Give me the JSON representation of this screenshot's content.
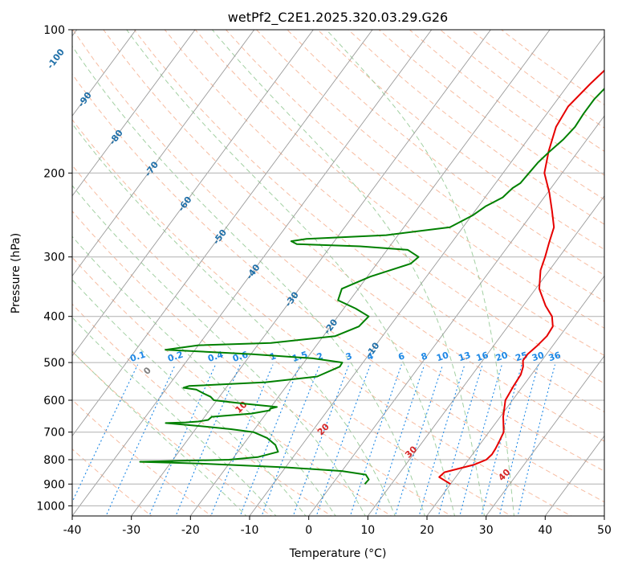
{
  "chart_data": {
    "type": "line",
    "subtype": "skew-t log-p diagram",
    "title": "wetPf2_C2E1.2025.320.03.29.G26",
    "xlabel": "Temperature (°C)",
    "ylabel": "Pressure (hPa)",
    "xlim": [
      -40,
      50
    ],
    "ylim": [
      1050,
      100
    ],
    "x_ticks": [
      -40,
      -30,
      -20,
      -10,
      0,
      10,
      20,
      30,
      40,
      50
    ],
    "y_ticks": [
      100,
      200,
      300,
      400,
      500,
      600,
      700,
      800,
      900,
      1000
    ],
    "grid": true,
    "colors": {
      "temperature": "#e60000",
      "dewpoint": "#008000",
      "isotherm": "#9a9a9a",
      "isobar": "#b0b0b0",
      "dry_adiabat": "#f4a582",
      "moist_adiabat": "#92c892",
      "mixing_ratio": "#1e88e5",
      "isotherm_label": "#1f6fa8",
      "dry_adiabat_label": "#d62728",
      "zero_label": "#808080",
      "mixing_label": "#1e88e5"
    },
    "series": [
      {
        "name": "Temperature",
        "pressure": [
          900,
          870,
          850,
          835,
          820,
          800,
          780,
          760,
          740,
          700,
          650,
          600,
          560,
          530,
          510,
          495,
          480,
          460,
          440,
          420,
          400,
          380,
          350,
          320,
          300,
          280,
          260,
          240,
          220,
          200,
          180,
          160,
          145,
          130,
          120,
          110,
          100
        ],
        "values": [
          20,
          17.2,
          17.5,
          19.5,
          21.5,
          23,
          23.3,
          23.2,
          23,
          22.5,
          20.5,
          18.8,
          18.4,
          18.2,
          17.6,
          16.8,
          16.8,
          17.4,
          17.8,
          17.6,
          16.2,
          13.8,
          10.6,
          8.5,
          7.6,
          6.5,
          5.4,
          3.0,
          0.3,
          -3.0,
          -5.0,
          -6.8,
          -7.3,
          -6.4,
          -5.5,
          -4.8,
          -3.7
        ]
      },
      {
        "name": "Dewpoint",
        "pressure": [
          900,
          880,
          860,
          845,
          830,
          815,
          808,
          805,
          800,
          790,
          770,
          745,
          720,
          700,
          690,
          680,
          670,
          668,
          665,
          660,
          650,
          640,
          630,
          625,
          620,
          610,
          600,
          590,
          580,
          570,
          565,
          560,
          550,
          535,
          510,
          500,
          490,
          480,
          470,
          460,
          455,
          440,
          420,
          400,
          385,
          370,
          350,
          330,
          310,
          300,
          290,
          285,
          282,
          278,
          275,
          270,
          260,
          245,
          235,
          225,
          215,
          210,
          200,
          190,
          180,
          170,
          160,
          150,
          140,
          130,
          120,
          110,
          100
        ],
        "values": [
          5.5,
          5.6,
          4.5,
          0,
          -10,
          -25,
          -35.3,
          -30,
          -20.5,
          -16,
          -13.2,
          -14.5,
          -16.8,
          -19.8,
          -24,
          -29.5,
          -35.8,
          -32.5,
          -30.5,
          -29,
          -28.8,
          -22.5,
          -19.8,
          -19.9,
          -19,
          -25,
          -30.5,
          -31.5,
          -33.2,
          -34.8,
          -37.2,
          -36.5,
          -24,
          -16,
          -13.4,
          -13.5,
          -19,
          -30,
          -45,
          -40,
          -28,
          -18,
          -15.2,
          -14.8,
          -18,
          -22,
          -22.8,
          -19.5,
          -14.3,
          -13.8,
          -16.5,
          -25,
          -36,
          -37.3,
          -35,
          -22,
          -12.2,
          -9.8,
          -8.8,
          -7,
          -6.5,
          -5.8,
          -5.6,
          -5.4,
          -4.8,
          -4.0,
          -3.6,
          -3.8,
          -3.8,
          -3.2,
          -2.2,
          -1.0,
          0.4
        ]
      }
    ],
    "isotherm_labels": [
      "-100",
      "-90",
      "-80",
      "-70",
      "-60",
      "-50",
      "-40",
      "-30",
      "-20",
      "-10"
    ],
    "dry_adiabat_labels": [
      "0",
      "10",
      "20",
      "30",
      "40"
    ],
    "mixing_ratio_labels": [
      "0.1",
      "0.2",
      "0.4",
      "0.6",
      "1",
      "1.5",
      "2",
      "3",
      "4",
      "6",
      "8",
      "10",
      "13",
      "16",
      "20",
      "25",
      "30",
      "36"
    ]
  }
}
